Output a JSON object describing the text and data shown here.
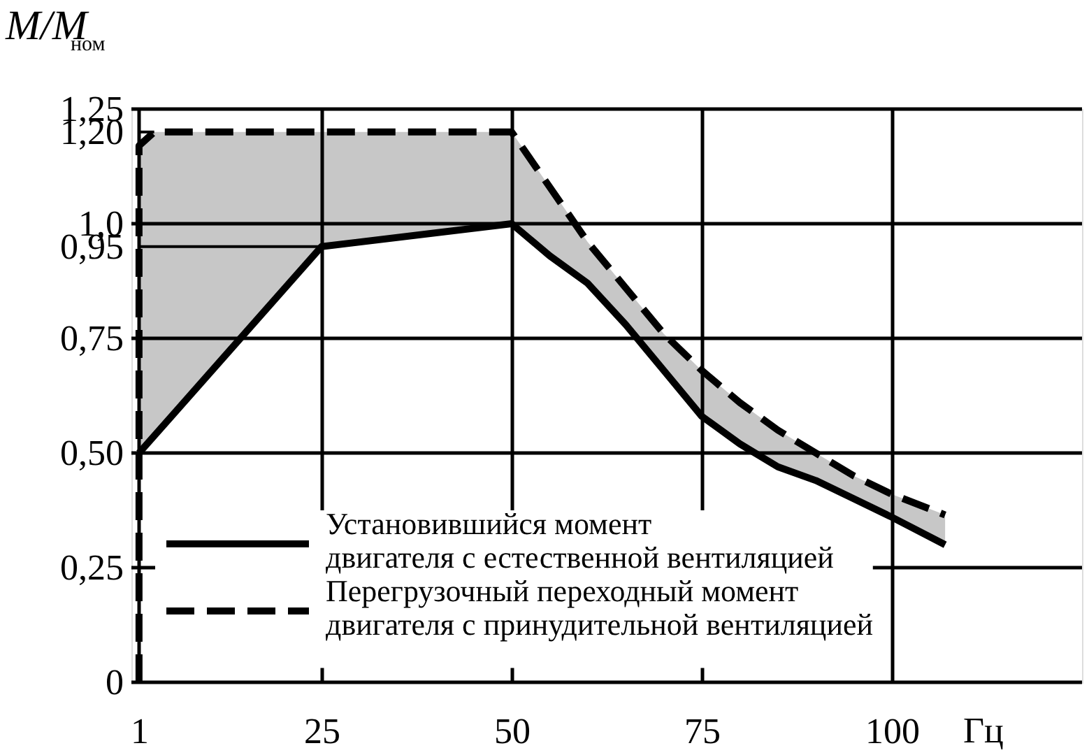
{
  "chart_data": {
    "type": "line",
    "ylabel": "M/M$_{ном}$",
    "xlabel": "Гц",
    "xlim": [
      0,
      125
    ],
    "ylim": [
      0,
      1.25
    ],
    "xticks": [
      1,
      25,
      50,
      75,
      100
    ],
    "yticks": [
      0,
      {
        "value": 0.25,
        "label": "0,25"
      },
      {
        "value": 0.5,
        "label": "0,50"
      },
      {
        "value": 0.75,
        "label": "0,75"
      },
      {
        "value": 1.0,
        "label": "1,0"
      },
      {
        "value": 1.25,
        "label": "1,25"
      }
    ],
    "ref_lines": [
      {
        "axis": "y",
        "value": 0.95,
        "label": "0,95"
      },
      {
        "axis": "y",
        "value": 1.2,
        "label": "1,20"
      }
    ],
    "grid": true,
    "legend": "bottom left",
    "series": [
      {
        "name": "Установившийся момент двигателя с естественной вентиляцией",
        "color": "#000000",
        "line_style": "solid",
        "x": [
          1,
          25,
          50,
          55,
          60,
          65,
          70,
          75,
          80,
          85,
          90,
          95,
          100,
          107
        ],
        "values": [
          0.5,
          0.95,
          1.0,
          0.93,
          0.87,
          0.78,
          0.68,
          0.58,
          0.52,
          0.47,
          0.44,
          0.4,
          0.36,
          0.3
        ]
      },
      {
        "name": "Перегрузочный переходный момент двигателя с принудительной вентиляцией",
        "color": "#000000",
        "line_style": "dashed",
        "x": [
          1,
          1,
          3,
          25,
          50,
          55,
          60,
          65,
          70,
          75,
          80,
          85,
          90,
          95,
          100,
          107
        ],
        "values": [
          0,
          1.17,
          1.2,
          1.2,
          1.2,
          1.08,
          0.96,
          0.86,
          0.76,
          0.68,
          0.61,
          0.55,
          0.5,
          0.45,
          0.41,
          0.365
        ],
        "upper": [
          null,
          1.17,
          1.2,
          1.2,
          1.2,
          1.08,
          0.96,
          0.86,
          0.76,
          0.68,
          0.61,
          0.55,
          0.5,
          0.45,
          0.41,
          0.365
        ],
        "lower": [
          null,
          0.5,
          0.54,
          0.95,
          1.0,
          0.93,
          0.87,
          0.78,
          0.68,
          0.58,
          0.52,
          0.47,
          0.44,
          0.4,
          0.36,
          0.3
        ]
      }
    ]
  }
}
